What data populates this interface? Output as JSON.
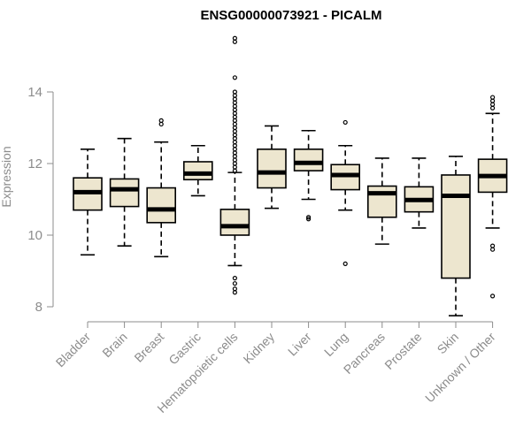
{
  "chart_data": {
    "type": "box",
    "title": "ENSG00000073921 - PICALM",
    "xlabel": "",
    "ylabel": "Expression",
    "ylim": [
      7.7,
      15.6
    ],
    "yticks": [
      8,
      10,
      12,
      14
    ],
    "grid": false,
    "box_fill": "#ede6cf",
    "series": [
      {
        "category": "Bladder",
        "whisker_low": 9.45,
        "q1": 10.7,
        "median": 11.2,
        "q3": 11.6,
        "whisker_high": 12.4,
        "outliers": []
      },
      {
        "category": "Brain",
        "whisker_low": 9.7,
        "q1": 10.8,
        "median": 11.28,
        "q3": 11.57,
        "whisker_high": 12.7,
        "outliers": []
      },
      {
        "category": "Breast",
        "whisker_low": 9.4,
        "q1": 10.35,
        "median": 10.72,
        "q3": 11.32,
        "whisker_high": 12.6,
        "outliers": [
          13.1,
          13.2
        ]
      },
      {
        "category": "Gastric",
        "whisker_low": 11.1,
        "q1": 11.55,
        "median": 11.72,
        "q3": 12.05,
        "whisker_high": 12.5,
        "outliers": []
      },
      {
        "category": "Hematopoietic cells",
        "whisker_low": 9.15,
        "q1": 10.0,
        "median": 10.25,
        "q3": 10.72,
        "whisker_high": 11.75,
        "outliers": [
          8.4,
          8.5,
          8.65,
          8.8,
          11.8,
          11.9,
          12.0,
          12.1,
          12.2,
          12.3,
          12.4,
          12.5,
          12.6,
          12.7,
          12.8,
          12.9,
          13.0,
          13.1,
          13.2,
          13.3,
          13.4,
          13.5,
          13.6,
          13.7,
          13.8,
          13.9,
          14.0,
          14.4,
          15.4,
          15.5
        ]
      },
      {
        "category": "Kidney",
        "whisker_low": 10.75,
        "q1": 11.32,
        "median": 11.75,
        "q3": 12.4,
        "whisker_high": 13.05,
        "outliers": []
      },
      {
        "category": "Liver",
        "whisker_low": 11.0,
        "q1": 11.8,
        "median": 12.02,
        "q3": 12.4,
        "whisker_high": 12.92,
        "outliers": [
          10.45,
          10.5
        ]
      },
      {
        "category": "Lung",
        "whisker_low": 10.7,
        "q1": 11.27,
        "median": 11.68,
        "q3": 11.97,
        "whisker_high": 12.5,
        "outliers": [
          9.2,
          13.15
        ]
      },
      {
        "category": "Pancreas",
        "whisker_low": 9.75,
        "q1": 10.5,
        "median": 11.17,
        "q3": 11.37,
        "whisker_high": 12.15,
        "outliers": []
      },
      {
        "category": "Prostate",
        "whisker_low": 10.2,
        "q1": 10.65,
        "median": 10.98,
        "q3": 11.35,
        "whisker_high": 12.15,
        "outliers": []
      },
      {
        "category": "Skin",
        "whisker_low": 7.75,
        "q1": 8.8,
        "median": 11.1,
        "q3": 11.68,
        "whisker_high": 12.2,
        "outliers": []
      },
      {
        "category": "Unknown / Other",
        "whisker_low": 10.2,
        "q1": 11.2,
        "median": 11.65,
        "q3": 12.12,
        "whisker_high": 13.4,
        "outliers": [
          8.3,
          9.6,
          9.7,
          13.55,
          13.65,
          13.75,
          13.85
        ]
      }
    ]
  }
}
